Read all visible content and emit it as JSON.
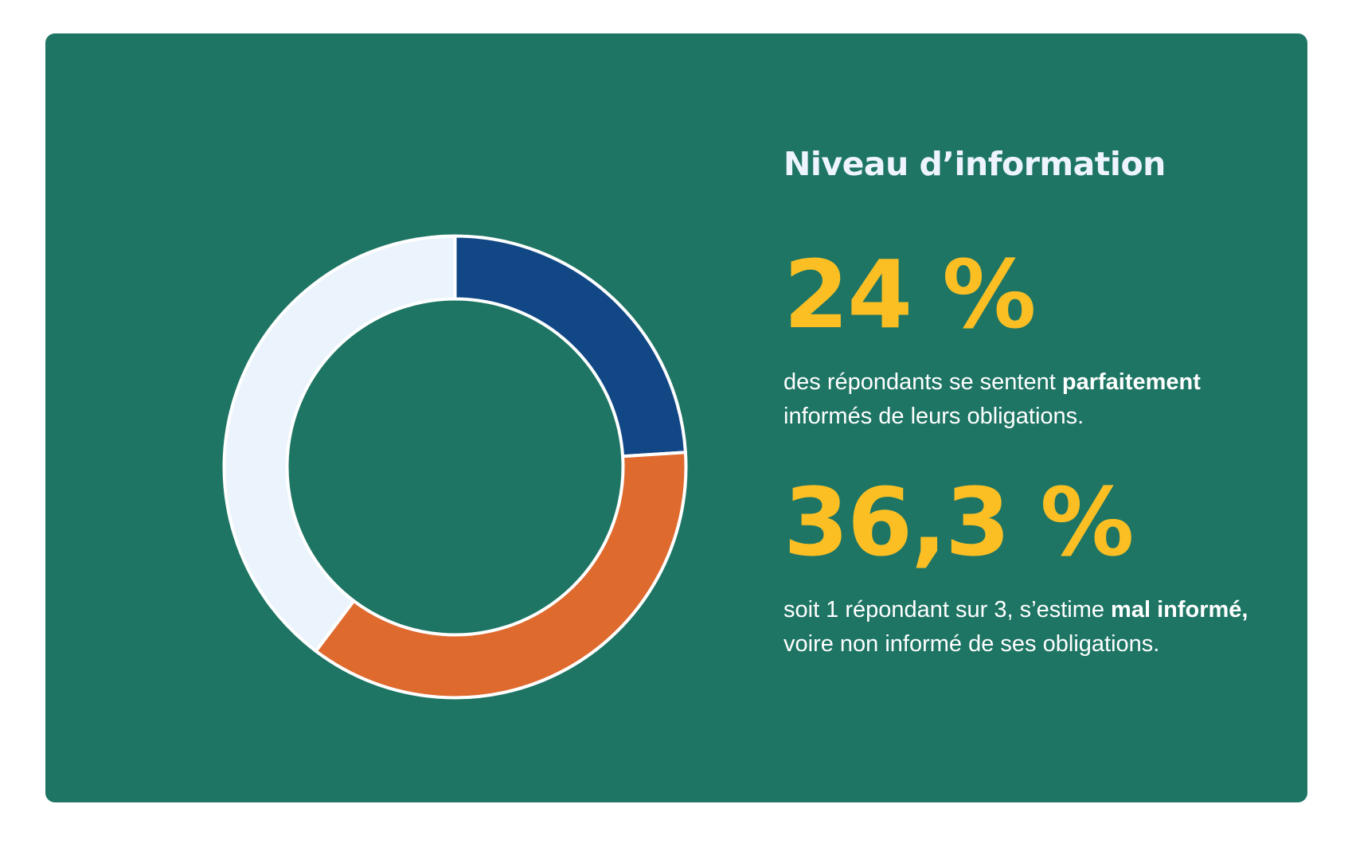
{
  "colors": {
    "card_background": "#1e7564",
    "title": "#eef4fc",
    "stat": "#fbbf24",
    "body_text": "#ffffff",
    "ring_outline": "#ffffff"
  },
  "title": "Niveau d’information",
  "stats": [
    {
      "value": "24 %",
      "description": {
        "before": "des répondants se sentent ",
        "bold": "parfaitement",
        "after": " informés de leurs obligations."
      }
    },
    {
      "value": "36,3 %",
      "description": {
        "before": "soit 1 répondant sur 3, s’estime ",
        "bold": "mal informé,",
        "after": " voire non informé de ses obligations."
      }
    }
  ],
  "chart_data": {
    "type": "pie",
    "donut": true,
    "title": "",
    "unit": "%",
    "start": "top",
    "direction": "clockwise",
    "slices": [
      {
        "value": 24,
        "color": "#114785"
      },
      {
        "value": 36.3,
        "color": "#de6a2e"
      },
      {
        "value": 39.7,
        "color": "#ebf3fd"
      }
    ]
  }
}
